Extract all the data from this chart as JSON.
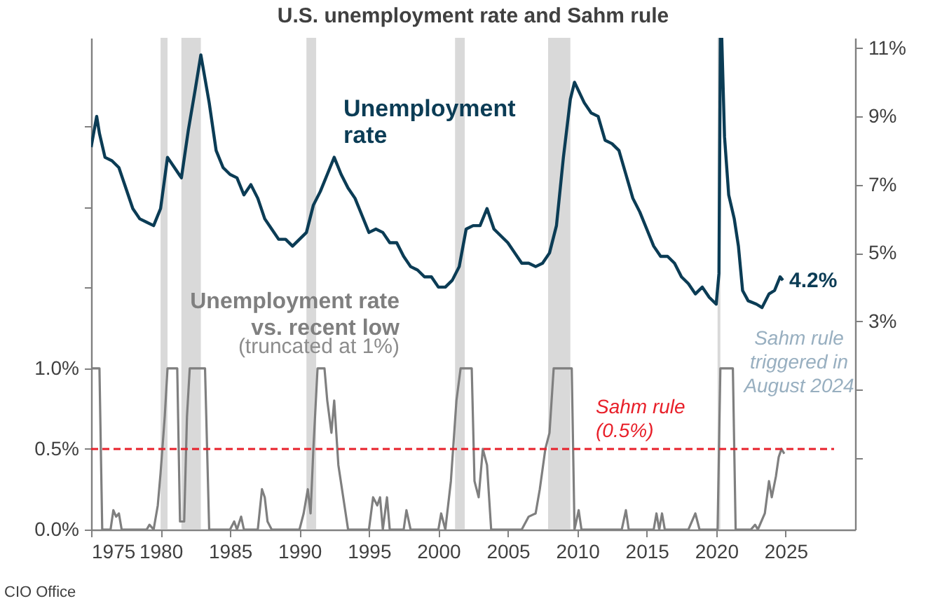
{
  "chart_data": {
    "type": "line",
    "title": "U.S. unemployment rate and Sahm rule",
    "xlim": [
      1975,
      2030
    ],
    "xticks": [
      1975,
      1980,
      1985,
      1990,
      1995,
      2000,
      2005,
      2010,
      2015,
      2020,
      2025
    ],
    "ylim": [
      0,
      3.05
    ],
    "yticks": [
      {
        "value": 0,
        "label": "0.0%"
      },
      {
        "value": 0.5,
        "label": "0.5%"
      },
      {
        "value": 1,
        "label": "1.0%"
      },
      {
        "value": 1.5,
        "label": null
      },
      {
        "value": 2,
        "label": null
      },
      {
        "value": 2.5,
        "label": null
      }
    ],
    "y2lim": [
      -3.1,
      11.3
    ],
    "y2ticks": [
      {
        "value": -1,
        "label": null
      },
      {
        "value": 1,
        "label": null
      },
      {
        "value": 3,
        "label": "3%"
      },
      {
        "value": 5,
        "label": "5%"
      },
      {
        "value": 7,
        "label": "7%"
      },
      {
        "value": 9,
        "label": "9%"
      },
      {
        "value": 11,
        "label": "11%"
      }
    ],
    "series": [
      {
        "name": "Unemployment rate",
        "axis": "y2",
        "color": "#0b3c55",
        "x": [
          1975.0,
          1975.4,
          1975.6,
          1976.0,
          1976.5,
          1977.0,
          1977.5,
          1978.0,
          1978.5,
          1979.0,
          1979.5,
          1980.0,
          1980.5,
          1981.0,
          1981.5,
          1982.0,
          1982.5,
          1982.9,
          1983.5,
          1984.0,
          1984.5,
          1985.0,
          1985.5,
          1986.0,
          1986.5,
          1987.0,
          1987.5,
          1988.0,
          1988.5,
          1989.0,
          1989.5,
          1990.0,
          1990.5,
          1991.0,
          1991.5,
          1992.0,
          1992.5,
          1993.0,
          1993.5,
          1994.0,
          1994.5,
          1995.0,
          1995.5,
          1996.0,
          1996.5,
          1997.0,
          1997.5,
          1998.0,
          1998.5,
          1999.0,
          1999.5,
          2000.0,
          2000.5,
          2001.0,
          2001.5,
          2002.0,
          2002.5,
          2003.0,
          2003.5,
          2004.0,
          2004.5,
          2005.0,
          2005.5,
          2006.0,
          2006.5,
          2007.0,
          2007.5,
          2008.0,
          2008.5,
          2009.0,
          2009.5,
          2009.8,
          2010.5,
          2011.0,
          2011.5,
          2012.0,
          2012.5,
          2013.0,
          2013.5,
          2014.0,
          2014.5,
          2015.0,
          2015.5,
          2016.0,
          2016.5,
          2017.0,
          2017.5,
          2018.0,
          2018.5,
          2019.0,
          2019.5,
          2020.0,
          2020.2,
          2020.3,
          2020.4,
          2020.6,
          2020.9,
          2021.3,
          2021.6,
          2021.9,
          2022.3,
          2022.9,
          2023.3,
          2023.8,
          2024.2,
          2024.6,
          2024.8
        ],
        "values": [
          8.1,
          9.0,
          8.5,
          7.8,
          7.7,
          7.5,
          6.9,
          6.3,
          6.0,
          5.9,
          5.8,
          6.3,
          7.8,
          7.5,
          7.2,
          8.6,
          9.8,
          10.8,
          9.4,
          8.0,
          7.5,
          7.3,
          7.2,
          6.7,
          7.0,
          6.6,
          6.0,
          5.7,
          5.4,
          5.4,
          5.2,
          5.4,
          5.6,
          6.4,
          6.8,
          7.3,
          7.8,
          7.3,
          6.9,
          6.6,
          6.1,
          5.6,
          5.7,
          5.6,
          5.3,
          5.3,
          4.9,
          4.6,
          4.5,
          4.3,
          4.3,
          4.0,
          4.0,
          4.2,
          4.6,
          5.7,
          5.8,
          5.8,
          6.3,
          5.7,
          5.5,
          5.3,
          5.0,
          4.7,
          4.7,
          4.6,
          4.7,
          5.0,
          5.8,
          7.8,
          9.5,
          10.0,
          9.4,
          9.1,
          9.0,
          8.3,
          8.2,
          8.0,
          7.3,
          6.6,
          6.2,
          5.7,
          5.2,
          4.9,
          4.9,
          4.7,
          4.3,
          4.1,
          3.8,
          4.0,
          3.7,
          3.5,
          4.4,
          11.3,
          11.3,
          8.4,
          6.7,
          6.0,
          5.2,
          3.9,
          3.6,
          3.5,
          3.4,
          3.8,
          3.9,
          4.3,
          4.2
        ]
      },
      {
        "name": "Unemployment rate vs. recent low",
        "color": "#7f7f7f",
        "x": [
          1975.0,
          1975.6,
          1975.8,
          1976.4,
          1976.6,
          1976.8,
          1977.0,
          1977.2,
          1979.0,
          1979.2,
          1979.5,
          1979.8,
          1980.0,
          1980.3,
          1980.5,
          1981.2,
          1981.4,
          1981.7,
          1981.9,
          1982.1,
          1983.2,
          1983.5,
          1985.0,
          1985.3,
          1985.5,
          1985.8,
          1986.0,
          1987.0,
          1987.3,
          1987.5,
          1987.7,
          1988.0,
          1990.0,
          1990.3,
          1990.6,
          1990.8,
          1991.0,
          1991.3,
          1991.8,
          1992.0,
          1992.3,
          1992.5,
          1992.8,
          1993.5,
          1995.0,
          1995.3,
          1995.6,
          1995.8,
          1996.0,
          1996.3,
          1996.5,
          1997.5,
          1997.7,
          1998.0,
          1999.0,
          2000.0,
          2000.2,
          2000.5,
          2000.9,
          2001.3,
          2001.6,
          2002.4,
          2002.6,
          2002.9,
          2003.2,
          2003.5,
          2003.8,
          2005.0,
          2006.0,
          2006.5,
          2007.0,
          2007.3,
          2007.7,
          2008.0,
          2008.3,
          2009.6,
          2009.8,
          2010.1,
          2010.3,
          2013.2,
          2013.5,
          2013.7,
          2015.5,
          2015.7,
          2015.9,
          2016.1,
          2016.3,
          2018.0,
          2018.5,
          2018.8,
          2020.1,
          2020.3,
          2021.2,
          2021.4,
          2022.5,
          2022.8,
          2023.0,
          2023.5,
          2023.8,
          2024.0,
          2024.3,
          2024.5,
          2024.7,
          2024.9
        ],
        "values": [
          1.0,
          1.0,
          0,
          0,
          0.12,
          0.08,
          0.1,
          0,
          0,
          0.03,
          0,
          0.15,
          0.35,
          0.7,
          1.0,
          1.0,
          0.05,
          0.05,
          0.7,
          1.0,
          1.0,
          0,
          0,
          0.05,
          0,
          0.08,
          0,
          0,
          0.25,
          0.2,
          0.05,
          0,
          0,
          0.1,
          0.25,
          0.1,
          0.5,
          1.0,
          1.0,
          0.8,
          0.6,
          0.8,
          0.4,
          0,
          0,
          0.2,
          0.15,
          0.2,
          0,
          0.2,
          0,
          0,
          0.12,
          0,
          0,
          0,
          0.1,
          0,
          0.3,
          0.8,
          1.0,
          1.0,
          0.3,
          0.2,
          0.5,
          0.4,
          0,
          0,
          0,
          0.08,
          0.1,
          0.25,
          0.5,
          0.6,
          1.0,
          1.0,
          0,
          0.12,
          0,
          0,
          0.12,
          0,
          0,
          0.1,
          0,
          0.1,
          0,
          0,
          0.1,
          0,
          0,
          1.0,
          1.0,
          0,
          0,
          0.03,
          0,
          0.1,
          0.3,
          0.2,
          0.33,
          0.45,
          0.5,
          0.47
        ]
      }
    ],
    "bands": [
      {
        "axis": "x",
        "from": 1980.0,
        "to": 1980.5,
        "color": "#d9d9d9"
      },
      {
        "axis": "x",
        "from": 1981.5,
        "to": 1982.9,
        "color": "#d9d9d9"
      },
      {
        "axis": "x",
        "from": 1990.5,
        "to": 1991.2,
        "color": "#d9d9d9"
      },
      {
        "axis": "x",
        "from": 2001.2,
        "to": 2001.9,
        "color": "#d9d9d9"
      },
      {
        "axis": "x",
        "from": 2007.9,
        "to": 2009.5,
        "color": "#d9d9d9"
      },
      {
        "axis": "x",
        "from": 2020.1,
        "to": 2020.3,
        "color": "#d9d9d9"
      }
    ],
    "ref_lines": [
      {
        "axis": "y",
        "value": 0.5,
        "label": "Sahm rule (0.5%)",
        "color": "#e8202a",
        "line_style": "dashed"
      }
    ],
    "annotations": [
      "(truncated at 1%)",
      "Sahm rule triggered in August 2024",
      "4.2%",
      "CIO Office"
    ]
  }
}
